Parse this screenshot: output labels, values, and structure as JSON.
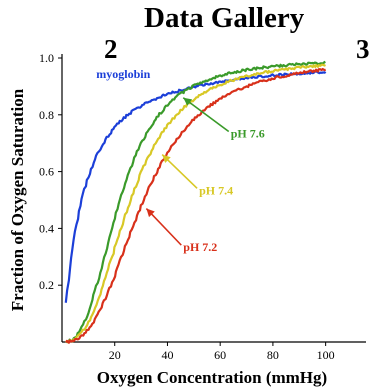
{
  "header": {
    "title": "Data Gallery",
    "left_number": "2",
    "right_number": "3"
  },
  "chart_data": {
    "type": "line",
    "xlabel": "Oxygen Concentration (mmHg)",
    "ylabel": "Fraction of Oxygen Saturation",
    "xlim": [
      0,
      110
    ],
    "ylim": [
      0,
      1.0
    ],
    "xticks": [
      20,
      40,
      60,
      80,
      100
    ],
    "xtick_labels": [
      "20",
      "40",
      "60",
      "80",
      "100"
    ],
    "yticks": [
      0.2,
      0.4,
      0.6,
      0.8,
      1.0
    ],
    "ytick_labels": [
      "0.2",
      "0.4",
      "0.6",
      "0.8",
      "1.0"
    ],
    "grid": false,
    "series": [
      {
        "name": "myoglobin",
        "color": "#1c3fd8",
        "model": "hyperbolic",
        "p50": 7.5,
        "n": 1.15,
        "x": [
          2,
          5,
          10,
          15,
          20,
          30,
          40,
          60,
          80,
          100
        ],
        "y": [
          0.03,
          0.35,
          0.57,
          0.68,
          0.75,
          0.83,
          0.88,
          0.94,
          0.98,
          0.99
        ]
      },
      {
        "name": "pH 7.6",
        "color": "#3a9a2a",
        "model": "hill",
        "p50": 22,
        "n": 2.7,
        "x": [
          2,
          10,
          20,
          30,
          40,
          50,
          60,
          80,
          100
        ],
        "y": [
          0.02,
          0.12,
          0.43,
          0.68,
          0.82,
          0.89,
          0.93,
          0.96,
          0.97
        ]
      },
      {
        "name": "pH 7.4",
        "color": "#d8c826",
        "model": "hill",
        "p50": 26,
        "n": 2.7,
        "x": [
          2,
          10,
          20,
          30,
          40,
          50,
          60,
          80,
          100
        ],
        "y": [
          0.02,
          0.08,
          0.33,
          0.6,
          0.76,
          0.85,
          0.9,
          0.94,
          0.96
        ]
      },
      {
        "name": "pH 7.2",
        "color": "#d8301a",
        "model": "hill",
        "p50": 31,
        "n": 2.7,
        "x": [
          2,
          10,
          20,
          30,
          40,
          50,
          60,
          80,
          100
        ],
        "y": [
          0.02,
          0.05,
          0.21,
          0.47,
          0.65,
          0.77,
          0.85,
          0.91,
          0.94
        ]
      }
    ],
    "annotations": [
      {
        "label": "myoglobin",
        "series": "myoglobin",
        "x": 13,
        "y": 0.93,
        "arrow": false
      },
      {
        "label": "pH 7.6",
        "series": "pH 7.6",
        "x": 64,
        "y": 0.72,
        "arrow_to": [
          46,
          0.86
        ]
      },
      {
        "label": "pH 7.4",
        "series": "pH 7.4",
        "x": 52,
        "y": 0.52,
        "arrow_to": [
          38,
          0.66
        ]
      },
      {
        "label": "pH 7.2",
        "series": "pH 7.2",
        "x": 46,
        "y": 0.32,
        "arrow_to": [
          32,
          0.47
        ]
      }
    ]
  }
}
